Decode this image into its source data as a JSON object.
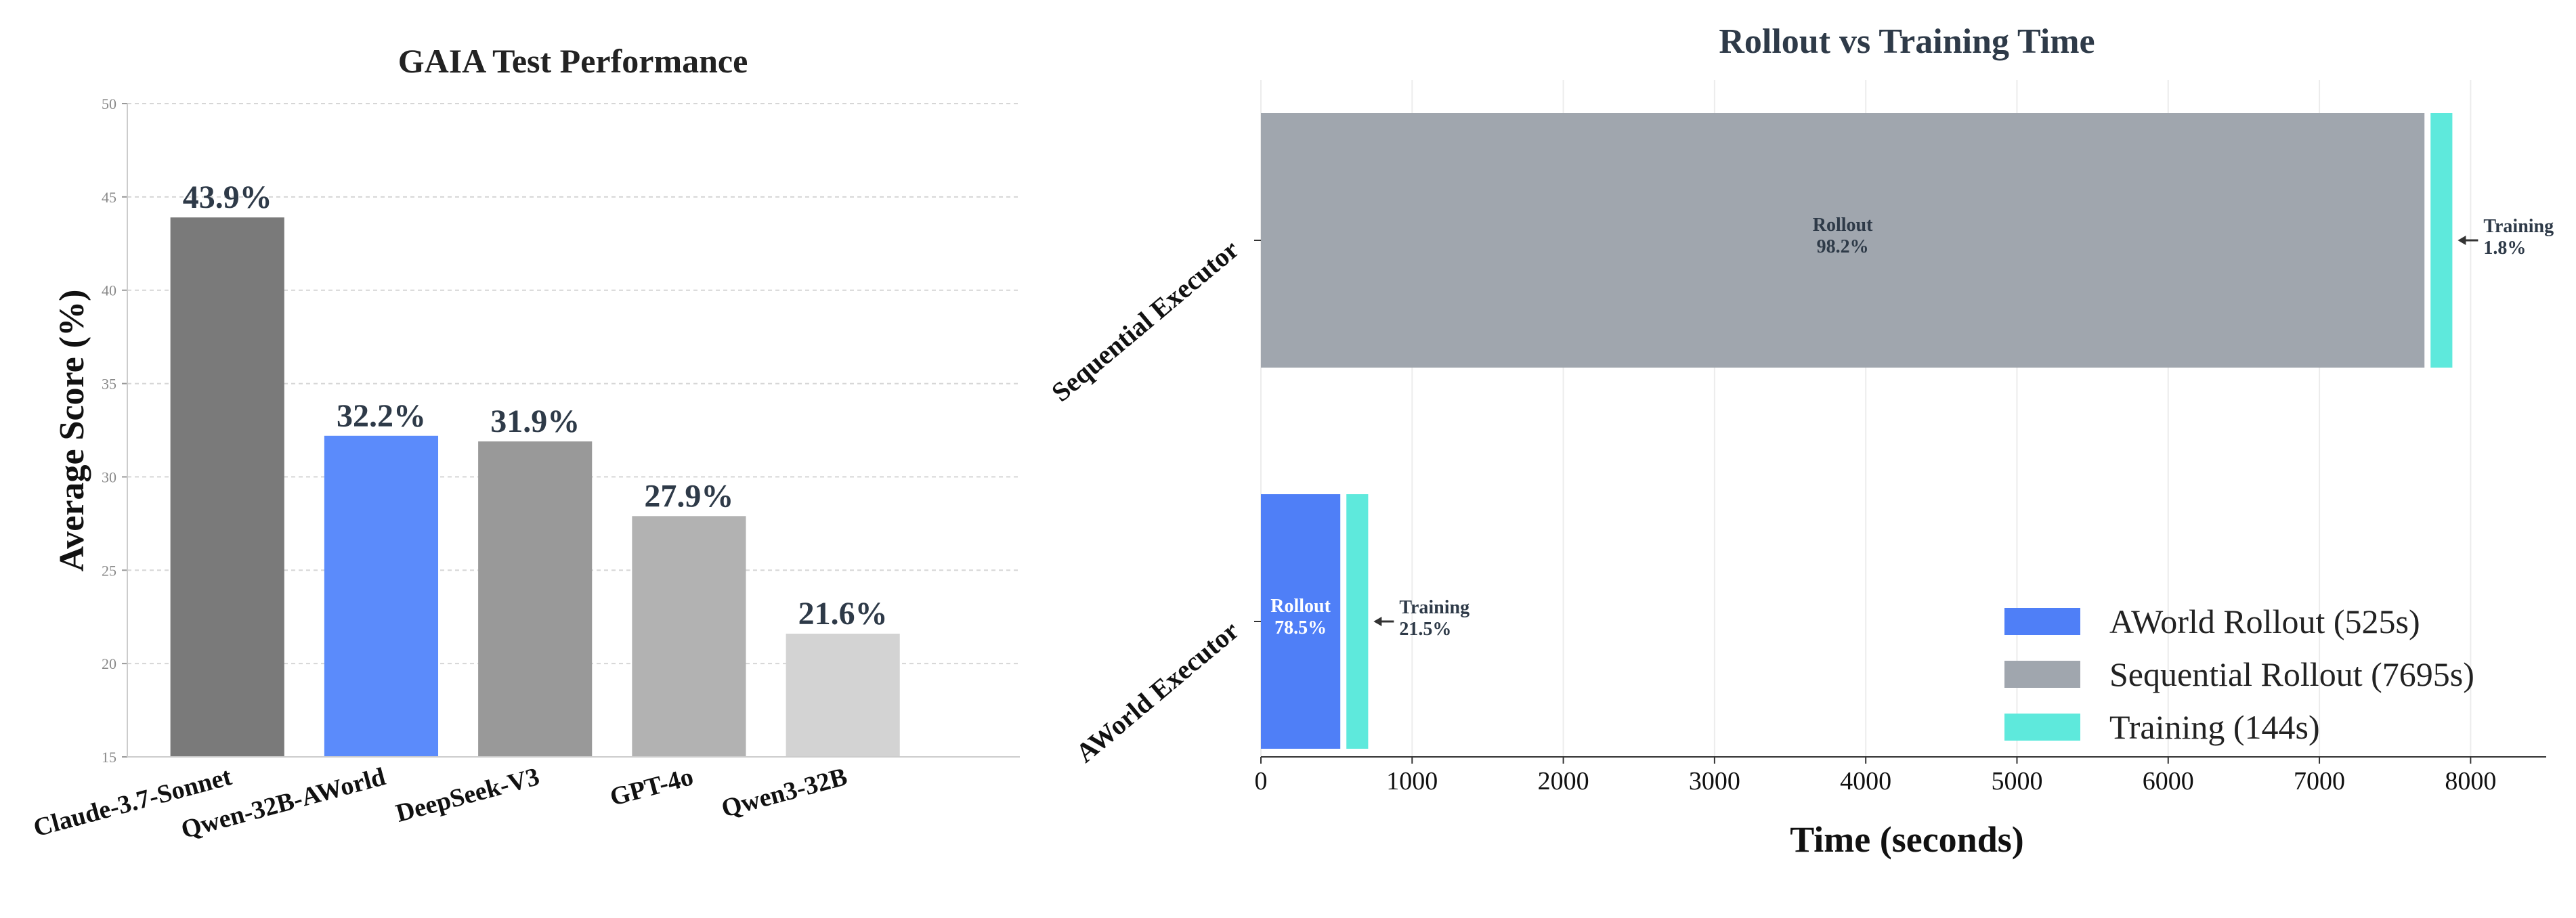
{
  "chart_data": [
    {
      "type": "bar",
      "title": "GAIA Test Performance",
      "xlabel": "",
      "ylabel": "Average Score (%)",
      "ylim": [
        15,
        50
      ],
      "yticks": [
        "15",
        "20",
        "25",
        "30",
        "35",
        "40",
        "45",
        "50"
      ],
      "grid": true,
      "categories": [
        "Claude-3.7-Sonnet",
        "Qwen-32B-AWorld",
        "DeepSeek-V3",
        "GPT-4o",
        "Qwen3-32B"
      ],
      "values": [
        43.9,
        32.2,
        31.9,
        27.9,
        21.6
      ],
      "value_labels": [
        "43.9%",
        "32.2%",
        "31.9%",
        "27.9%",
        "21.6%"
      ],
      "colors": [
        "#7a7a7a",
        "#5b8bfb",
        "#999999",
        "#b2b2b2",
        "#d3d3d3"
      ]
    },
    {
      "type": "bar",
      "orientation": "horizontal",
      "stacked": true,
      "title": "Rollout vs Training Time",
      "xlabel": "Time (seconds)",
      "ylabel": "",
      "xlim": [
        0,
        8500
      ],
      "xticks": [
        "0",
        "1000",
        "2000",
        "3000",
        "4000",
        "5000",
        "6000",
        "7000",
        "8000"
      ],
      "grid": true,
      "categories": [
        "Sequential Executor",
        "AWorld Executor"
      ],
      "segments": [
        {
          "category": "Sequential Executor",
          "parts": [
            {
              "name": "Rollout",
              "value": 7695,
              "label": "Rollout",
              "percent": "98.2%",
              "color": "#a0a6ae"
            },
            {
              "name": "Training",
              "value": 144,
              "label": "Training",
              "percent": "1.8%",
              "color": "#5ee9dc"
            }
          ]
        },
        {
          "category": "AWorld Executor",
          "parts": [
            {
              "name": "Rollout",
              "value": 525,
              "label": "Rollout",
              "percent": "78.5%",
              "color": "#4f7ff7"
            },
            {
              "name": "Training",
              "value": 144,
              "label": "Training",
              "percent": "21.5%",
              "color": "#5ee9dc"
            }
          ]
        }
      ],
      "legend": {
        "position": "bottom-right",
        "entries": [
          {
            "label": "AWorld Rollout (525s)",
            "color": "#4f7ff7"
          },
          {
            "label": "Sequential Rollout (7695s)",
            "color": "#a0a6ae"
          },
          {
            "label": "Training (144s)",
            "color": "#5ee9dc"
          }
        ]
      }
    }
  ]
}
